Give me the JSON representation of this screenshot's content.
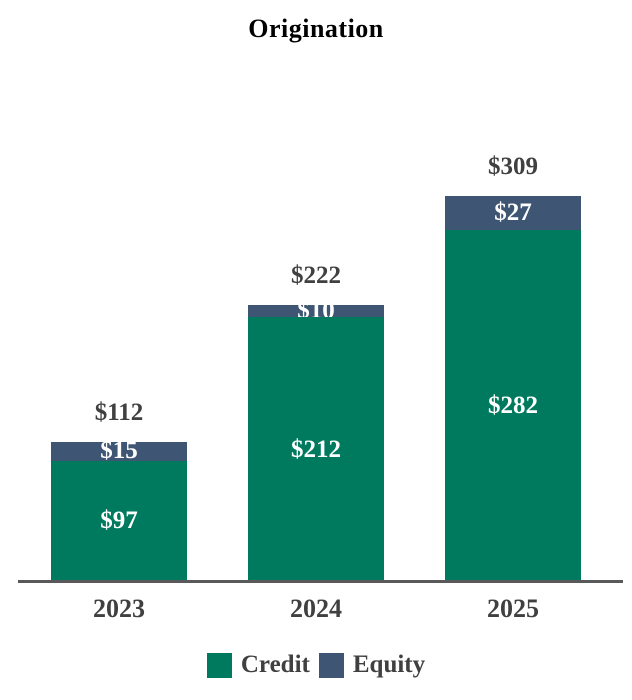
{
  "title": "Origination",
  "chart_data": {
    "type": "bar",
    "stacked": true,
    "title": "Origination",
    "categories": [
      "2023",
      "2024",
      "2025"
    ],
    "series": [
      {
        "name": "Credit",
        "color": "#007A5E",
        "values": [
          97,
          212,
          282
        ]
      },
      {
        "name": "Equity",
        "color": "#3E5673",
        "values": [
          15,
          10,
          27
        ]
      }
    ],
    "totals": [
      112,
      222,
      309
    ],
    "value_prefix": "$",
    "ylim": [
      0,
      340
    ],
    "grid": false,
    "legend_position": "bottom",
    "xlabel": "",
    "ylabel": ""
  },
  "bars": [
    {
      "category": "2023",
      "total_label": "$112",
      "equity_label": "$15",
      "credit_label": "$97"
    },
    {
      "category": "2024",
      "total_label": "$222",
      "equity_label": "$10",
      "credit_label": "$212"
    },
    {
      "category": "2025",
      "total_label": "$309",
      "equity_label": "$27",
      "credit_label": "$282"
    }
  ],
  "legend": {
    "items": [
      {
        "label": "Credit",
        "color": "#007A5E"
      },
      {
        "label": "Equity",
        "color": "#3E5673"
      }
    ]
  },
  "colors": {
    "credit": "#007A5E",
    "equity": "#3E5673",
    "label_text": "#404040",
    "axis_line": "#595959",
    "bar_value_text": "#FFFFFF",
    "title_text": "#000000"
  }
}
